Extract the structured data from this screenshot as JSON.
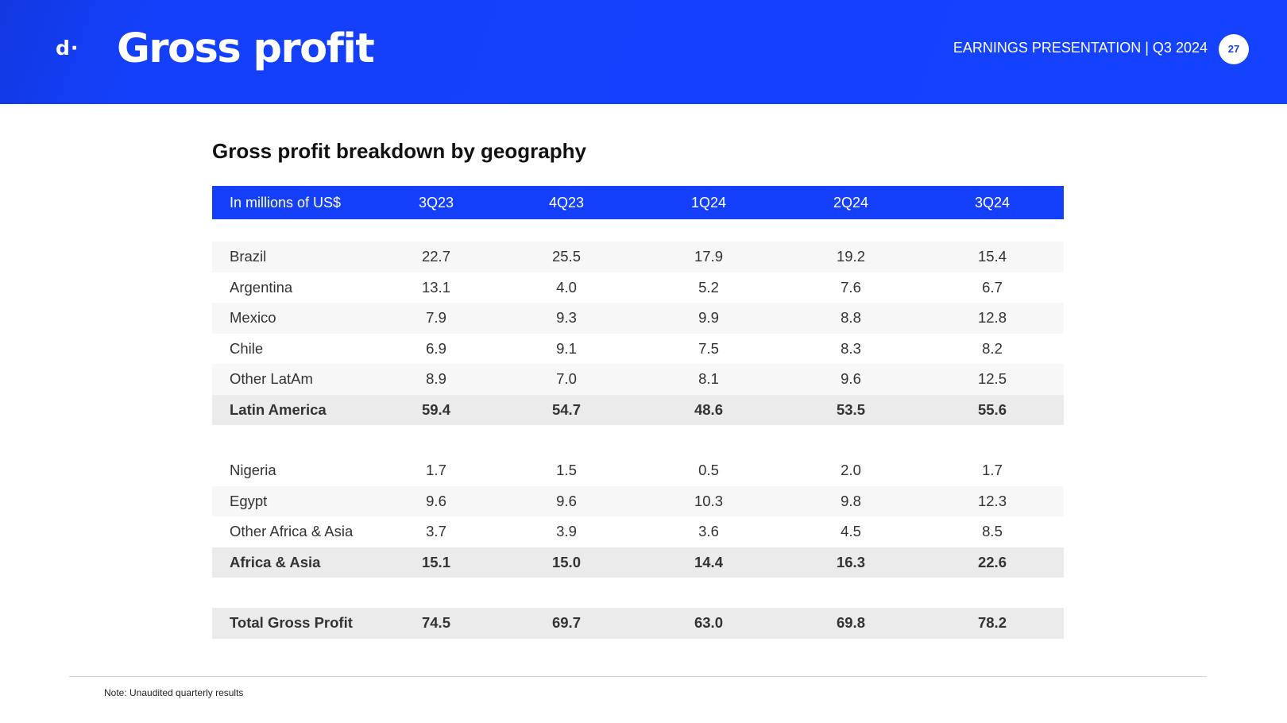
{
  "header": {
    "logo_text": "d·",
    "title": "Gross profit",
    "deck_title": "EARNINGS PRESENTATION | Q3 2024",
    "page_number": "27",
    "brand_color": "#1440fb"
  },
  "section_title": "Gross profit breakdown by geography",
  "table": {
    "unit_label": "In millions of US$",
    "periods": [
      "3Q23",
      "4Q23",
      "1Q24",
      "2Q24",
      "3Q24"
    ],
    "rows": [
      {
        "label": "Brazil",
        "values": [
          "22.7",
          "25.5",
          "17.9",
          "19.2",
          "15.4"
        ]
      },
      {
        "label": "Argentina",
        "values": [
          "13.1",
          "4.0",
          "5.2",
          "7.6",
          "6.7"
        ]
      },
      {
        "label": "Mexico",
        "values": [
          "7.9",
          "9.3",
          "9.9",
          "8.8",
          "12.8"
        ]
      },
      {
        "label": "Chile",
        "values": [
          "6.9",
          "9.1",
          "7.5",
          "8.3",
          "8.2"
        ]
      },
      {
        "label": "Other LatAm",
        "values": [
          "8.9",
          "7.0",
          "8.1",
          "9.6",
          "12.5"
        ]
      },
      {
        "label": "Latin America",
        "values": [
          "59.4",
          "54.7",
          "48.6",
          "53.5",
          "55.6"
        ]
      },
      {
        "label": "Nigeria",
        "values": [
          "1.7",
          "1.5",
          "0.5",
          "2.0",
          "1.7"
        ]
      },
      {
        "label": "Egypt",
        "values": [
          "9.6",
          "9.6",
          "10.3",
          "9.8",
          "12.3"
        ]
      },
      {
        "label": "Other Africa & Asia",
        "values": [
          "3.7",
          "3.9",
          "3.6",
          "4.5",
          "8.5"
        ]
      },
      {
        "label": "Africa & Asia",
        "values": [
          "15.1",
          "15.0",
          "14.4",
          "16.3",
          "22.6"
        ]
      },
      {
        "label": "Total Gross Profit",
        "values": [
          "74.5",
          "69.7",
          "63.0",
          "69.8",
          "78.2"
        ]
      }
    ]
  },
  "footnote": "Note: Unaudited quarterly results"
}
